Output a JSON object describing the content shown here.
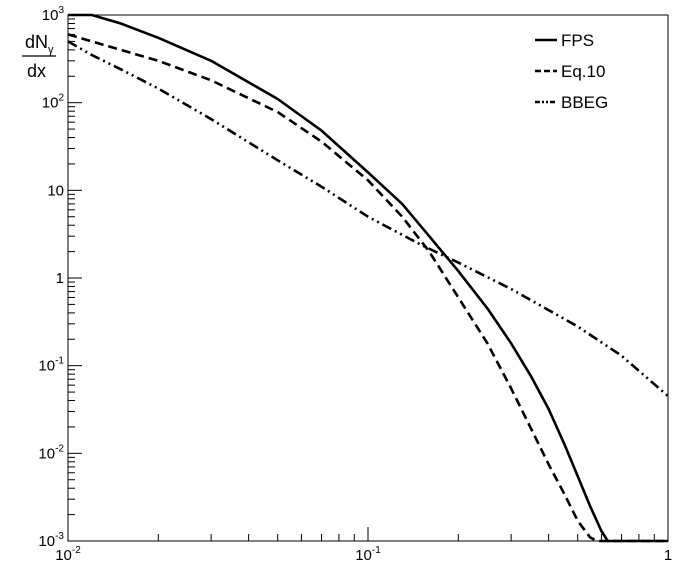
{
  "chart_data": {
    "type": "line",
    "ylabel_main": "dN",
    "ylabel_sub": "γ",
    "ylabel_den": "dx",
    "xscale": "log",
    "yscale": "log",
    "xlim": [
      0.01,
      1
    ],
    "ylim": [
      0.001,
      1000
    ],
    "grid": false,
    "legend_position": "top-right",
    "x_ticks": [
      {
        "base": "10",
        "exp": "-2",
        "value": 0.01
      },
      {
        "base": "10",
        "exp": "-1",
        "value": 0.1
      },
      {
        "base": "1",
        "exp": "",
        "value": 1
      }
    ],
    "y_ticks": [
      {
        "base": "10",
        "exp": "-3",
        "value": 0.001
      },
      {
        "base": "10",
        "exp": "-2",
        "value": 0.01
      },
      {
        "base": "10",
        "exp": "-1",
        "value": 0.1
      },
      {
        "base": "1",
        "exp": "",
        "value": 1
      },
      {
        "base": "10",
        "exp": "",
        "value": 10
      },
      {
        "base": "10",
        "exp": "2",
        "value": 100
      },
      {
        "base": "10",
        "exp": "3",
        "value": 1000
      }
    ],
    "series": [
      {
        "name": "FPS",
        "style": "solid",
        "x": [
          0.01,
          0.012,
          0.015,
          0.02,
          0.03,
          0.05,
          0.07,
          0.1,
          0.13,
          0.16,
          0.2,
          0.25,
          0.3,
          0.35,
          0.4,
          0.45,
          0.5,
          0.55,
          0.6,
          0.63,
          0.65,
          1.0
        ],
        "y": [
          1000,
          1000,
          800,
          550,
          300,
          110,
          48,
          16,
          7,
          3,
          1.2,
          0.45,
          0.18,
          0.075,
          0.032,
          0.013,
          0.0055,
          0.0025,
          0.0013,
          0.001,
          0.001,
          0.001
        ]
      },
      {
        "name": "Eq.10",
        "style": "dashed",
        "x": [
          0.01,
          0.012,
          0.015,
          0.02,
          0.03,
          0.05,
          0.07,
          0.1,
          0.13,
          0.16,
          0.2,
          0.25,
          0.3,
          0.35,
          0.4,
          0.45,
          0.5,
          0.55,
          0.58,
          0.6,
          0.65,
          1.0
        ],
        "y": [
          600,
          500,
          400,
          300,
          180,
          78,
          36,
          13,
          5,
          2,
          0.6,
          0.18,
          0.055,
          0.019,
          0.0075,
          0.0035,
          0.0017,
          0.0011,
          0.001,
          0.001,
          0.001,
          0.001
        ]
      },
      {
        "name": "BBEG",
        "style": "dash-dot-dot",
        "x": [
          0.01,
          0.012,
          0.015,
          0.02,
          0.03,
          0.05,
          0.07,
          0.1,
          0.15,
          0.2,
          0.3,
          0.5,
          0.7,
          1.0
        ],
        "y": [
          500,
          350,
          240,
          145,
          65,
          22,
          11,
          5,
          2.4,
          1.5,
          0.75,
          0.28,
          0.13,
          0.045
        ]
      }
    ]
  }
}
